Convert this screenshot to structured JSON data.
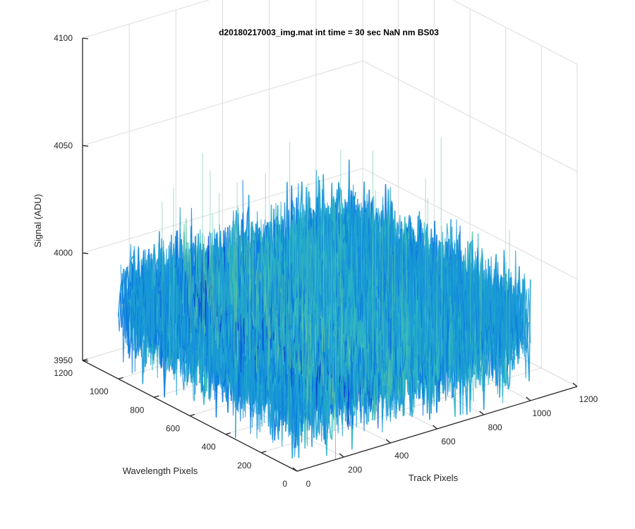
{
  "chart_data": {
    "type": "surface",
    "title": "d20180217003_img.mat int time = 30 sec  NaN nm BS03",
    "xlabel": "Track Pixels",
    "ylabel": "Wavelength Pixels",
    "zlabel": "Signal (ADU)",
    "xlim": [
      0,
      1200
    ],
    "ylim": [
      0,
      1200
    ],
    "zlim": [
      3950,
      4100
    ],
    "xticks": [
      0,
      200,
      400,
      600,
      800,
      1000,
      1200
    ],
    "yticks": [
      0,
      200,
      400,
      600,
      800,
      1000,
      1200
    ],
    "zticks": [
      3950,
      4000,
      4050,
      4100
    ],
    "data_extent": {
      "x": [
        0,
        1000
      ],
      "y": [
        0,
        1000
      ]
    },
    "signal_mean": 3985,
    "signal_std": 12,
    "grid": true,
    "colormap": [
      "#0a3fd0",
      "#0a73e0",
      "#1a9ad6",
      "#2cb6c4",
      "#5cc6a2"
    ]
  }
}
